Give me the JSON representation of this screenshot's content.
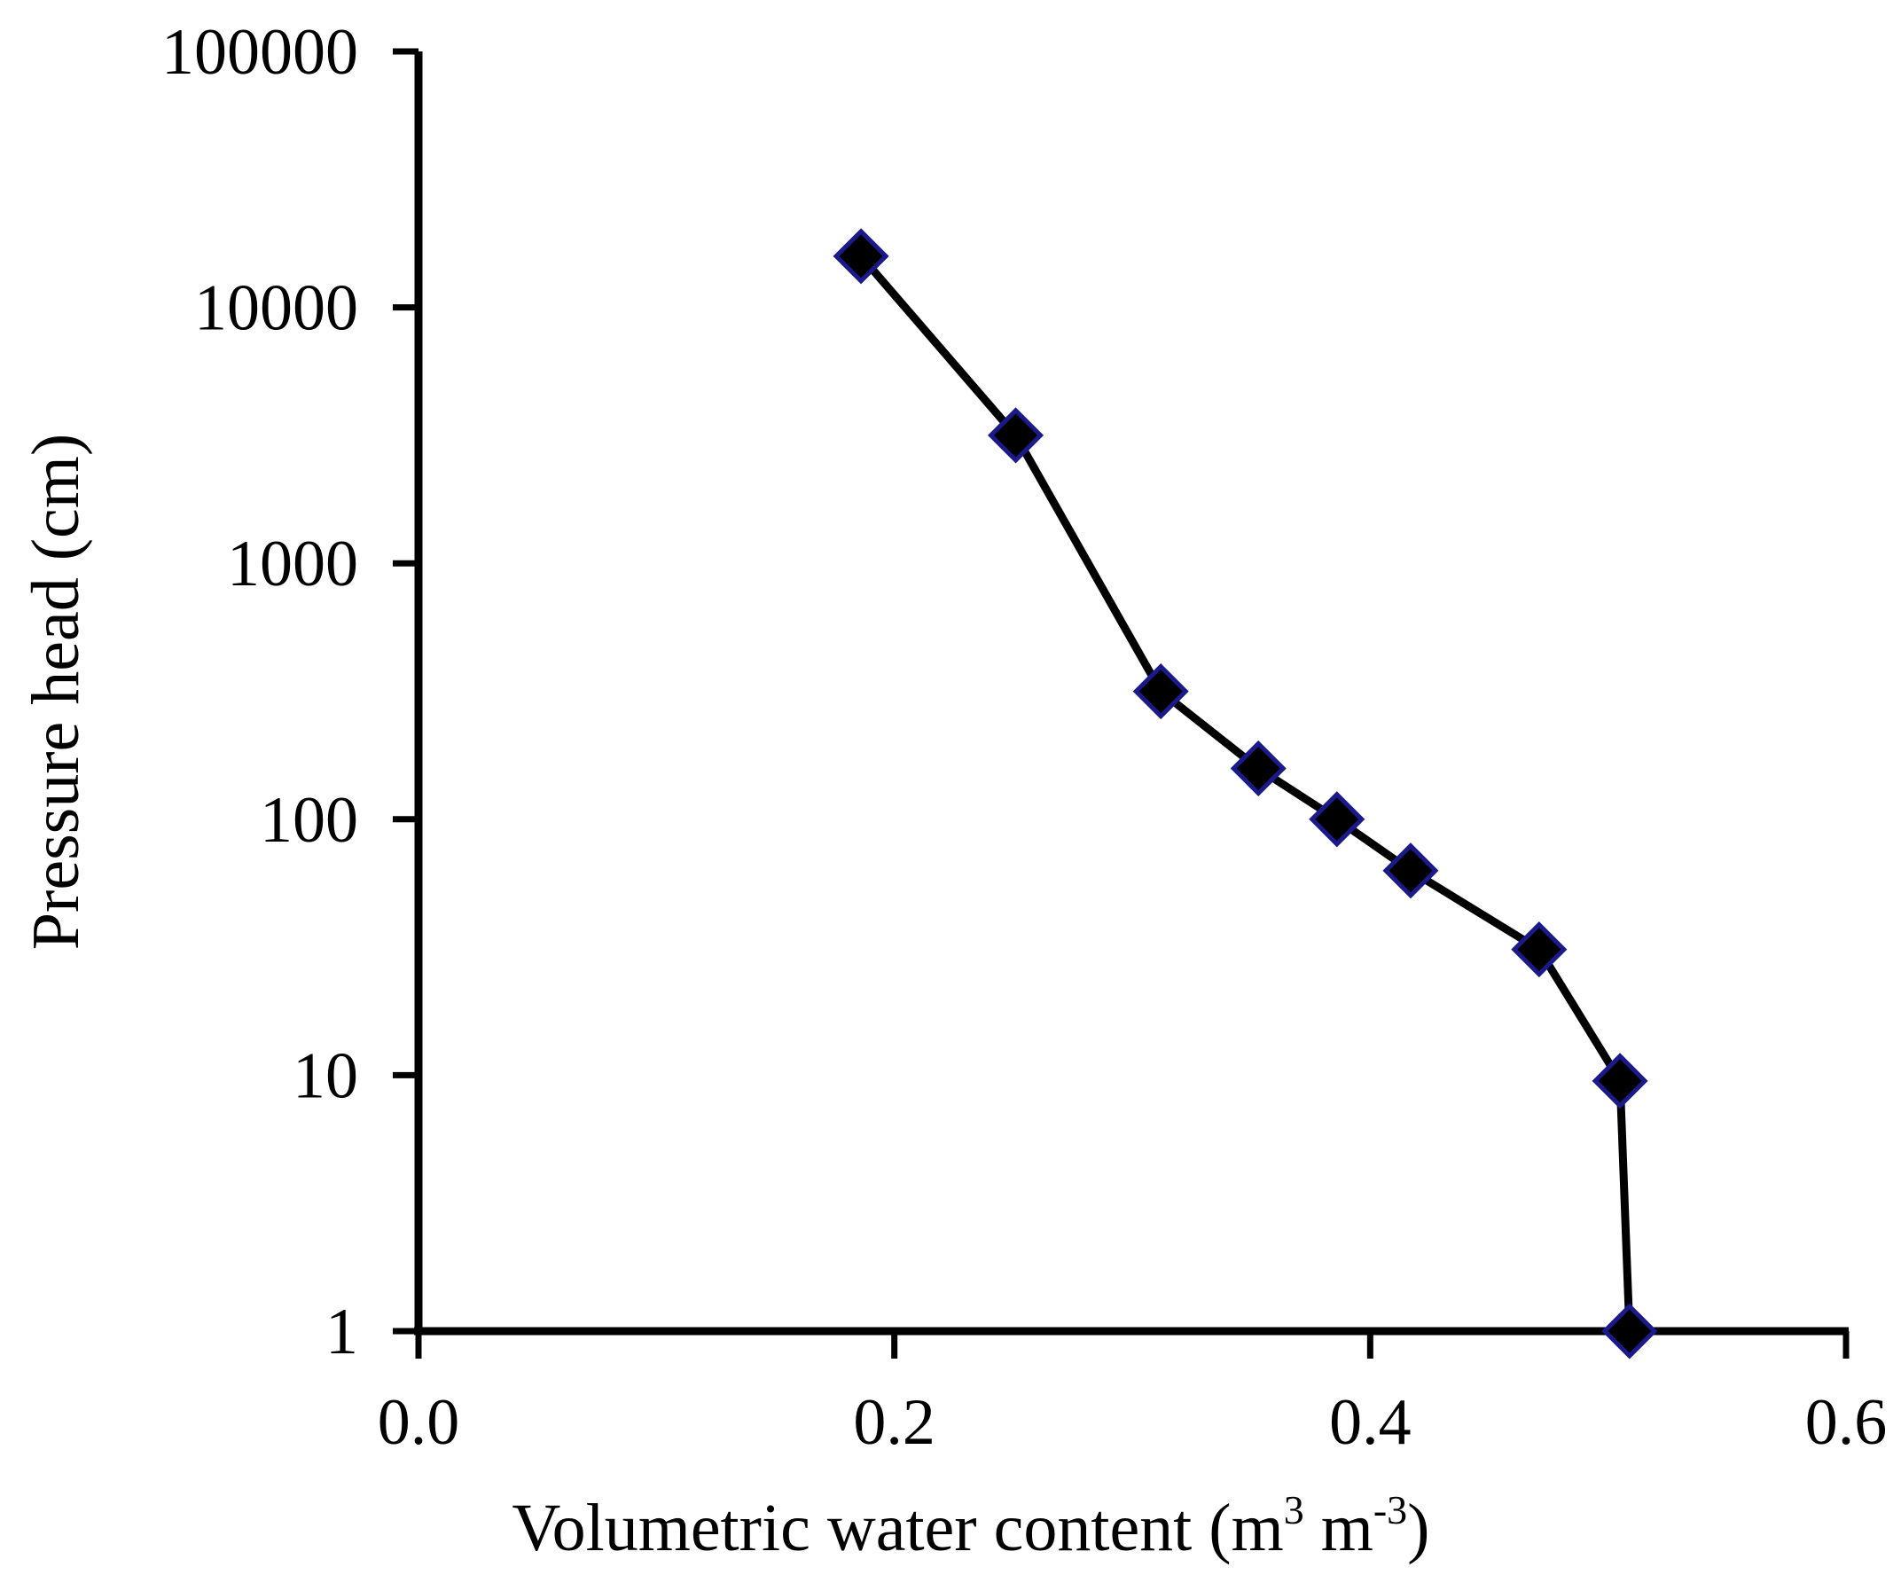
{
  "chart_data": {
    "type": "line",
    "xlabel": "Volumetric  water content (m",
    "xlabel_sup1": "3",
    "xlabel_mid": " m",
    "xlabel_sup2": "-3",
    "xlabel_end": ")",
    "ylabel": "Pressure head (cm)",
    "x_ticks": [
      "0.0",
      "0.2",
      "0.4",
      "0.6"
    ],
    "x_tick_values": [
      0.0,
      0.2,
      0.4,
      0.6
    ],
    "y_ticks": [
      "1",
      "10",
      "100",
      "1000",
      "10000",
      "100000"
    ],
    "y_tick_values": [
      1,
      10,
      100,
      1000,
      10000,
      100000
    ],
    "xlim": [
      0,
      0.6
    ],
    "ylim": [
      1,
      100000
    ],
    "y_scale": "log",
    "grid": false,
    "series": [
      {
        "color": "#000000",
        "marker": "diamond",
        "marker_fill": "#000000",
        "marker_edge": "#1a1a8c",
        "points": [
          {
            "x": 0.186,
            "y": 15849
          },
          {
            "x": 0.251,
            "y": 3162
          },
          {
            "x": 0.312,
            "y": 316
          },
          {
            "x": 0.353,
            "y": 158
          },
          {
            "x": 0.386,
            "y": 100
          },
          {
            "x": 0.417,
            "y": 63
          },
          {
            "x": 0.471,
            "y": 31
          },
          {
            "x": 0.505,
            "y": 9.5
          },
          {
            "x": 0.509,
            "y": 1
          }
        ]
      }
    ]
  }
}
